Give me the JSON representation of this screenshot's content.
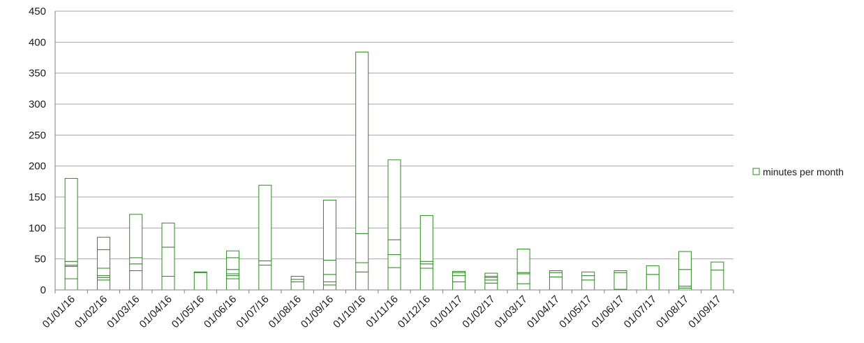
{
  "chart_data": {
    "type": "bar",
    "stacked": true,
    "title": "",
    "xlabel": "",
    "ylabel": "",
    "ylim": [
      0,
      450
    ],
    "yticks": [
      0,
      50,
      100,
      150,
      200,
      250,
      300,
      350,
      400,
      450
    ],
    "grid": true,
    "legend": {
      "position": "right",
      "entries": [
        "minutes per month"
      ]
    },
    "colors": {
      "bar_stroke": "#2e8b22",
      "bar_fill": "#ffffff",
      "grid": "#a6a6a6",
      "axis": "#808080"
    },
    "categories": [
      "01/01/16",
      "01/02/16",
      "01/03/16",
      "01/04/16",
      "01/05/16",
      "01/06/16",
      "01/07/16",
      "01/08/16",
      "01/09/16",
      "01/10/16",
      "01/11/16",
      "01/12/16",
      "01/01/17",
      "01/02/17",
      "01/03/17",
      "01/04/17",
      "01/05/17",
      "01/06/17",
      "01/07/17",
      "01/08/17",
      "01/09/17"
    ],
    "segments": [
      [
        18,
        20,
        2,
        6,
        134
      ],
      [
        16,
        4,
        3,
        12,
        30,
        20
      ],
      [
        31,
        11,
        10,
        70
      ],
      [
        22,
        47,
        39
      ],
      [
        28,
        1
      ],
      [
        18,
        5,
        3,
        7,
        19,
        11
      ],
      [
        40,
        7,
        122
      ],
      [
        13,
        4,
        5
      ],
      [
        8,
        5,
        12,
        23,
        97
      ],
      [
        29,
        15,
        47,
        293
      ],
      [
        36,
        21,
        24,
        129
      ],
      [
        35,
        7,
        4,
        74
      ],
      [
        13,
        10,
        5,
        2
      ],
      [
        11,
        5,
        4,
        2,
        5
      ],
      [
        10,
        16,
        2,
        38
      ],
      [
        21,
        7,
        3
      ],
      [
        16,
        7,
        6
      ],
      [
        1,
        27,
        3
      ],
      [
        25,
        14
      ],
      [
        3,
        3,
        27,
        29
      ],
      [
        32,
        13
      ]
    ],
    "totals": [
      180,
      85,
      122,
      108,
      29,
      63,
      169,
      22,
      145,
      384,
      210,
      120,
      30,
      27,
      66,
      31,
      29,
      31,
      39,
      62,
      45
    ]
  }
}
